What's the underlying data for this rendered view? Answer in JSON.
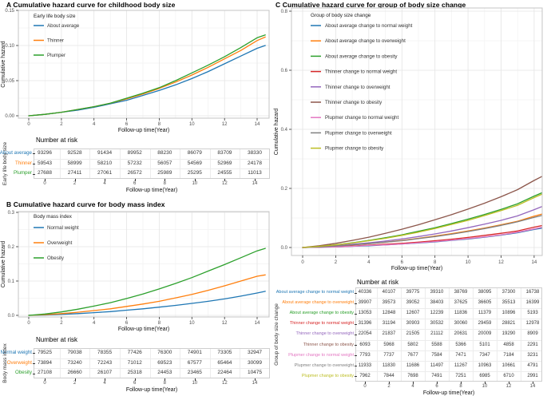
{
  "panels": {
    "A": {
      "title": "A Cumulative hazard curve for childhood body size"
    },
    "B": {
      "title": "B Cumulative hazard curve for body mass index"
    },
    "C": {
      "title": "C Cumulative hazard curve for group of body size change"
    }
  },
  "colors": {
    "blue": "#1f77b4",
    "orange": "#ff7f0e",
    "green": "#2ca02c",
    "red": "#d62728",
    "purple": "#9467bd",
    "brown": "#8c564b",
    "pink": "#e377c2",
    "gray": "#7f7f7f",
    "olive": "#bcbd22"
  },
  "chart_data": [
    {
      "id": "A",
      "type": "line",
      "title": "A Cumulative hazard curve for childhood body size",
      "xlabel": "Follow-up time(Year)",
      "ylabel": "Cumulative hazard",
      "legend_title": "Early life body size",
      "legend_position": "top-left-inside",
      "grid": true,
      "xlim": [
        0,
        14.5
      ],
      "ylim": [
        0,
        0.15
      ],
      "xtick_values": [
        0,
        2,
        4,
        6,
        8,
        10,
        12,
        14
      ],
      "xtick_labels": [
        "0",
        "2",
        "4",
        "6",
        "8",
        "10",
        "12",
        "14"
      ],
      "ytick_values": [
        0,
        0.05,
        0.1,
        0.15
      ],
      "ytick_labels": [
        "0.00",
        "0.05",
        "0.10",
        "0.15"
      ],
      "x": [
        0,
        1,
        2,
        3,
        4,
        5,
        6,
        7,
        8,
        9,
        10,
        11,
        12,
        13,
        14,
        14.5
      ],
      "series": [
        {
          "name": "About average",
          "color": "#1f77b4",
          "values": [
            0,
            0.002,
            0.005,
            0.008,
            0.012,
            0.017,
            0.022,
            0.029,
            0.036,
            0.044,
            0.053,
            0.063,
            0.074,
            0.085,
            0.096,
            0.1
          ]
        },
        {
          "name": "Thinner",
          "color": "#ff7f0e",
          "values": [
            0,
            0.002,
            0.005,
            0.009,
            0.013,
            0.018,
            0.024,
            0.031,
            0.039,
            0.048,
            0.058,
            0.069,
            0.081,
            0.093,
            0.107,
            0.112
          ]
        },
        {
          "name": "Plumper",
          "color": "#2ca02c",
          "values": [
            0,
            0.002,
            0.005,
            0.009,
            0.013,
            0.018,
            0.025,
            0.032,
            0.04,
            0.05,
            0.061,
            0.072,
            0.084,
            0.097,
            0.111,
            0.115
          ]
        }
      ]
    },
    {
      "id": "B",
      "type": "line",
      "title": "B Cumulative hazard curve for body mass index",
      "xlabel": "Follow-up time(Year)",
      "ylabel": "Cumulative hazard",
      "legend_title": "Body mass index",
      "legend_position": "top-left-inside",
      "grid": true,
      "xlim": [
        0,
        14.5
      ],
      "ylim": [
        0,
        0.3
      ],
      "xtick_values": [
        0,
        2,
        4,
        6,
        8,
        10,
        12,
        14
      ],
      "xtick_labels": [
        "0",
        "2",
        "4",
        "6",
        "8",
        "10",
        "12",
        "14"
      ],
      "ytick_values": [
        0,
        0.1,
        0.2,
        0.3
      ],
      "ytick_labels": [
        "0.0",
        "0.1",
        "0.2",
        "0.3"
      ],
      "x": [
        0,
        1,
        2,
        3,
        4,
        5,
        6,
        7,
        8,
        9,
        10,
        11,
        12,
        13,
        14,
        14.5
      ],
      "series": [
        {
          "name": "Normal weight",
          "color": "#1f77b4",
          "values": [
            0,
            0.001,
            0.003,
            0.005,
            0.008,
            0.011,
            0.015,
            0.019,
            0.024,
            0.029,
            0.035,
            0.041,
            0.048,
            0.056,
            0.065,
            0.07
          ]
        },
        {
          "name": "Overweight",
          "color": "#ff7f0e",
          "values": [
            0,
            0.002,
            0.005,
            0.009,
            0.014,
            0.019,
            0.026,
            0.033,
            0.041,
            0.051,
            0.061,
            0.073,
            0.086,
            0.1,
            0.114,
            0.118
          ]
        },
        {
          "name": "Obesity",
          "color": "#2ca02c",
          "values": [
            0,
            0.004,
            0.01,
            0.018,
            0.027,
            0.037,
            0.049,
            0.062,
            0.077,
            0.093,
            0.11,
            0.129,
            0.148,
            0.168,
            0.188,
            0.195
          ]
        }
      ]
    },
    {
      "id": "C",
      "type": "line",
      "title": "C Cumulative hazard curve for group of body size change",
      "xlabel": "Follow-up time(Year)",
      "ylabel": "Cumulative hazard",
      "legend_title": "Group of body size change",
      "legend_position": "top-left-inside",
      "grid": true,
      "xlim": [
        0,
        14.45
      ],
      "ylim": [
        0,
        0.8
      ],
      "xtick_values": [
        0,
        2,
        4,
        6,
        8,
        10,
        12,
        14
      ],
      "xtick_labels": [
        "0",
        "2",
        "4",
        "6",
        "8",
        "10",
        "12",
        "14"
      ],
      "ytick_values": [
        0,
        0.2,
        0.4,
        0.6,
        0.8
      ],
      "ytick_labels": [
        "0.0",
        "0.2",
        "0.4",
        "0.6",
        "0.8"
      ],
      "x": [
        0,
        1,
        2,
        3,
        4,
        5,
        6,
        7,
        8,
        9,
        10,
        11,
        12,
        13,
        14,
        14.45
      ],
      "series": [
        {
          "name": "About average change to normal weight",
          "color": "#1f77b4",
          "values": [
            0,
            0.001,
            0.002,
            0.004,
            0.006,
            0.009,
            0.012,
            0.015,
            0.019,
            0.024,
            0.029,
            0.035,
            0.042,
            0.05,
            0.061,
            0.065
          ]
        },
        {
          "name": "About average change to overweight",
          "color": "#ff7f0e",
          "values": [
            0,
            0.002,
            0.005,
            0.009,
            0.013,
            0.018,
            0.024,
            0.031,
            0.039,
            0.047,
            0.056,
            0.066,
            0.077,
            0.089,
            0.106,
            0.113
          ]
        },
        {
          "name": "About average change to obesity",
          "color": "#2ca02c",
          "values": [
            0,
            0.004,
            0.009,
            0.016,
            0.024,
            0.033,
            0.043,
            0.055,
            0.067,
            0.081,
            0.096,
            0.112,
            0.129,
            0.148,
            0.174,
            0.185
          ]
        },
        {
          "name": "Thinner change to normal weight",
          "color": "#d62728",
          "values": [
            0,
            0.001,
            0.003,
            0.005,
            0.008,
            0.011,
            0.014,
            0.018,
            0.023,
            0.028,
            0.034,
            0.041,
            0.048,
            0.056,
            0.069,
            0.074
          ]
        },
        {
          "name": "Thinner change to overweight",
          "color": "#9467bd",
          "values": [
            0,
            0.002,
            0.006,
            0.011,
            0.016,
            0.022,
            0.029,
            0.037,
            0.046,
            0.056,
            0.067,
            0.079,
            0.092,
            0.107,
            0.128,
            0.138
          ]
        },
        {
          "name": "Thinner change to obesity",
          "color": "#8c564b",
          "values": [
            0,
            0.006,
            0.014,
            0.024,
            0.035,
            0.048,
            0.062,
            0.077,
            0.094,
            0.111,
            0.13,
            0.15,
            0.172,
            0.196,
            0.227,
            0.24
          ]
        },
        {
          "name": "Plupmer change to normal weight",
          "color": "#e377c2",
          "values": [
            0,
            0.001,
            0.002,
            0.004,
            0.007,
            0.009,
            0.012,
            0.016,
            0.02,
            0.025,
            0.03,
            0.036,
            0.043,
            0.052,
            0.063,
            0.068
          ]
        },
        {
          "name": "Plupmer change to overweight",
          "color": "#7f7f7f",
          "values": [
            0,
            0.002,
            0.005,
            0.009,
            0.013,
            0.018,
            0.023,
            0.03,
            0.037,
            0.045,
            0.054,
            0.064,
            0.075,
            0.087,
            0.102,
            0.108
          ]
        },
        {
          "name": "Plupmer change to obesity",
          "color": "#bcbd22",
          "values": [
            0,
            0.004,
            0.009,
            0.015,
            0.023,
            0.031,
            0.041,
            0.052,
            0.064,
            0.078,
            0.092,
            0.108,
            0.125,
            0.143,
            0.169,
            0.18
          ]
        }
      ]
    }
  ],
  "risk_tables": [
    {
      "id": "A",
      "title": "Number at risk",
      "ylabel": "Early life body size",
      "xlabel": "Follow-up time(Year)",
      "xtick_labels": [
        "0",
        "2",
        "4",
        "6",
        "8",
        "10",
        "12",
        "14"
      ],
      "rows": [
        {
          "label": "About average",
          "color": "#1f77b4",
          "values": [
            93296,
            92528,
            91434,
            89952,
            88230,
            86079,
            83709,
            38330
          ]
        },
        {
          "label": "Thinner",
          "color": "#ff7f0e",
          "values": [
            59543,
            58999,
            58210,
            57232,
            56057,
            54569,
            52969,
            24178
          ]
        },
        {
          "label": "Plumper",
          "color": "#2ca02c",
          "values": [
            27688,
            27411,
            27061,
            26572,
            25989,
            25295,
            24555,
            11013
          ]
        }
      ]
    },
    {
      "id": "B",
      "title": "Number at risk",
      "ylabel": "Body mass index",
      "xlabel": "Follow-up time(Year)",
      "xtick_labels": [
        "0",
        "2",
        "4",
        "6",
        "8",
        "10",
        "12",
        "14"
      ],
      "rows": [
        {
          "label": "Normal weight",
          "color": "#1f77b4",
          "values": [
            79525,
            79038,
            78355,
            77426,
            76300,
            74901,
            73305,
            32947
          ]
        },
        {
          "label": "Overweight",
          "color": "#ff7f0e",
          "values": [
            73894,
            73240,
            72243,
            71012,
            69523,
            67577,
            65464,
            30099
          ]
        },
        {
          "label": "Obesity",
          "color": "#2ca02c",
          "values": [
            27108,
            26660,
            26107,
            25318,
            24453,
            23465,
            22464,
            10475
          ]
        }
      ]
    },
    {
      "id": "C",
      "title": "Number at risk",
      "ylabel": "Group of body size change",
      "xlabel": "Follow-up time(Year)",
      "xtick_labels": [
        "0",
        "2",
        "4",
        "6",
        "8",
        "10",
        "12",
        "14"
      ],
      "rows": [
        {
          "label": "About average change to normal weight",
          "color": "#1f77b4",
          "values": [
            40336,
            40107,
            39775,
            39310,
            38769,
            38095,
            37300,
            16738
          ]
        },
        {
          "label": "About average change to overweight",
          "color": "#ff7f0e",
          "values": [
            39907,
            39573,
            39052,
            38403,
            37625,
            36605,
            35513,
            16399
          ]
        },
        {
          "label": "About average change to obesity",
          "color": "#2ca02c",
          "values": [
            13053,
            12848,
            12607,
            12239,
            11836,
            11379,
            10896,
            5193
          ]
        },
        {
          "label": "Thinner change to normal weight",
          "color": "#d62728",
          "values": [
            31396,
            31194,
            30903,
            30532,
            30060,
            29459,
            28821,
            12978
          ]
        },
        {
          "label": "Thinner change to overweight",
          "color": "#9467bd",
          "values": [
            22054,
            21837,
            21505,
            21112,
            20631,
            20009,
            19290,
            8909
          ]
        },
        {
          "label": "Thinner change to obesity",
          "color": "#8c564b",
          "values": [
            6093,
            5968,
            5802,
            5588,
            5366,
            5101,
            4858,
            2291
          ]
        },
        {
          "label": "Plupmer change to normal weight",
          "color": "#e377c2",
          "values": [
            7793,
            7737,
            7677,
            7584,
            7471,
            7347,
            7184,
            3231
          ]
        },
        {
          "label": "Plupmer change to overweight",
          "color": "#7f7f7f",
          "values": [
            11933,
            11830,
            11686,
            11497,
            11267,
            10963,
            10661,
            4791
          ]
        },
        {
          "label": "Plupmer change to obesity",
          "color": "#bcbd22",
          "values": [
            7962,
            7844,
            7698,
            7491,
            7251,
            6985,
            6710,
            2991
          ]
        }
      ]
    }
  ]
}
